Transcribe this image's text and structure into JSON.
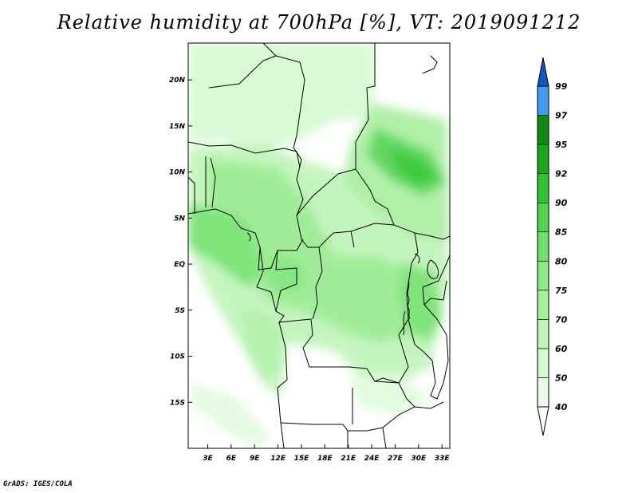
{
  "title": "Relative humidity at 700hPa [%], VT: 2019091212",
  "credit": "GrADS: IGES/COLA",
  "map": {
    "lat_range": [
      -20,
      24
    ],
    "lon_range": [
      0.5,
      34
    ],
    "lat_ticks": [
      "20N",
      "15N",
      "10N",
      "5N",
      "EQ",
      "5S",
      "10S",
      "15S"
    ],
    "lat_tick_values": [
      20,
      15,
      10,
      5,
      0,
      -5,
      -10,
      -15
    ],
    "lon_ticks": [
      "3E",
      "6E",
      "9E",
      "12E",
      "15E",
      "18E",
      "21E",
      "24E",
      "27E",
      "30E",
      "33E"
    ],
    "lon_tick_values": [
      3,
      6,
      9,
      12,
      15,
      18,
      21,
      24,
      27,
      30,
      33
    ]
  },
  "colorbar": {
    "labels": [
      "40",
      "50",
      "60",
      "70",
      "75",
      "80",
      "85",
      "90",
      "92",
      "95",
      "97",
      "99"
    ],
    "colors": [
      "#ffffff",
      "#e9fce7",
      "#d5f9d1",
      "#bff5b9",
      "#a6f0a0",
      "#8de888",
      "#6fdf6c",
      "#4fd44f",
      "#30c530",
      "#1ca71c",
      "#108b10",
      "#3f9bf2",
      "#2a7fe6",
      "#1b63cf",
      "#1555bf"
    ]
  }
}
